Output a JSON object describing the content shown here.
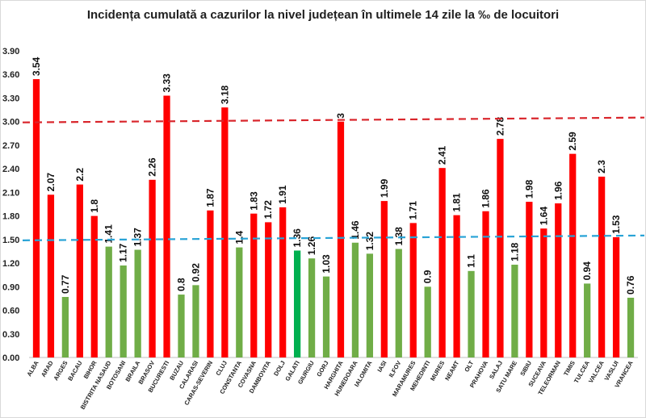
{
  "chart_data": {
    "type": "bar",
    "title": "Incidența cumulată a cazurilor la nivel județean în ultimele 14 zile la ‰ de locuitori",
    "ylim": [
      0,
      3.9
    ],
    "yticks": [
      "0.00",
      "0.30",
      "0.60",
      "0.90",
      "1.20",
      "1.50",
      "1.80",
      "2.10",
      "2.40",
      "2.70",
      "3.00",
      "3.30",
      "3.60",
      "3.90"
    ],
    "grid": false,
    "legend": "none",
    "categories": [
      "ALBA",
      "ARAD",
      "ARGES",
      "BACAU",
      "BIHOR",
      "BISTRITA NASAUD",
      "BOTOSANI",
      "BRAILA",
      "BRASOV",
      "BUCURESTI",
      "BUZAU",
      "CALARASI",
      "CARAS-SEVERIN",
      "CLUJ",
      "CONSTANTA",
      "COVASNA",
      "DAMBOVITA",
      "DOLJ",
      "GALATI",
      "GIURGIU",
      "GORJ",
      "HARGHITA",
      "HUNEDOARA",
      "IALOMITA",
      "IASI",
      "ILFOV",
      "MARAMURES",
      "MEHEDINTI",
      "MURES",
      "NEAMT",
      "OLT",
      "PRAHOVA",
      "SALAJ",
      "SATU MARE",
      "SIBIU",
      "SUCEAVA",
      "TELEORMAN",
      "TIMIS",
      "TULCEA",
      "VALCEA",
      "VASLUI",
      "VRANCEA"
    ],
    "values": [
      3.54,
      2.07,
      0.77,
      2.2,
      1.8,
      1.41,
      1.17,
      1.37,
      2.26,
      3.33,
      0.8,
      0.92,
      1.87,
      3.18,
      1.4,
      1.83,
      1.72,
      1.91,
      1.36,
      1.26,
      1.03,
      3,
      1.46,
      1.32,
      1.99,
      1.38,
      1.71,
      0.9,
      2.41,
      1.81,
      1.1,
      1.86,
      2.78,
      1.18,
      1.98,
      1.64,
      1.96,
      2.59,
      0.94,
      2.3,
      1.53,
      0.76
    ],
    "value_labels": [
      "3.54",
      "2.07",
      "0.77",
      "2.2",
      "1.8",
      "1.41",
      "1.17",
      "1.37",
      "2.26",
      "3.33",
      "0.8",
      "0.92",
      "1.87",
      "3.18",
      "1.4",
      "1.83",
      "1.72",
      "1.91",
      "1.36",
      "1.26",
      "1.03",
      "3",
      "1.46",
      "1.32",
      "1.99",
      "1.38",
      "1.71",
      "0.9",
      "2.41",
      "1.81",
      "1.1",
      "1.86",
      "2.78",
      "1.18",
      "1.98",
      "1.64",
      "1.96",
      "2.59",
      "0.94",
      "2.3",
      "1.53",
      "0.76"
    ],
    "bar_colors": {
      "high": "#ff0000",
      "low": "#70ad47",
      "highlight": "#00b050"
    },
    "highlight_category": "GALATI",
    "threshold_lines": [
      {
        "value": 3.0,
        "color": "#d9262c",
        "style": "dashed"
      },
      {
        "value": 1.5,
        "color": "#29a3d6",
        "style": "dashed"
      }
    ]
  }
}
